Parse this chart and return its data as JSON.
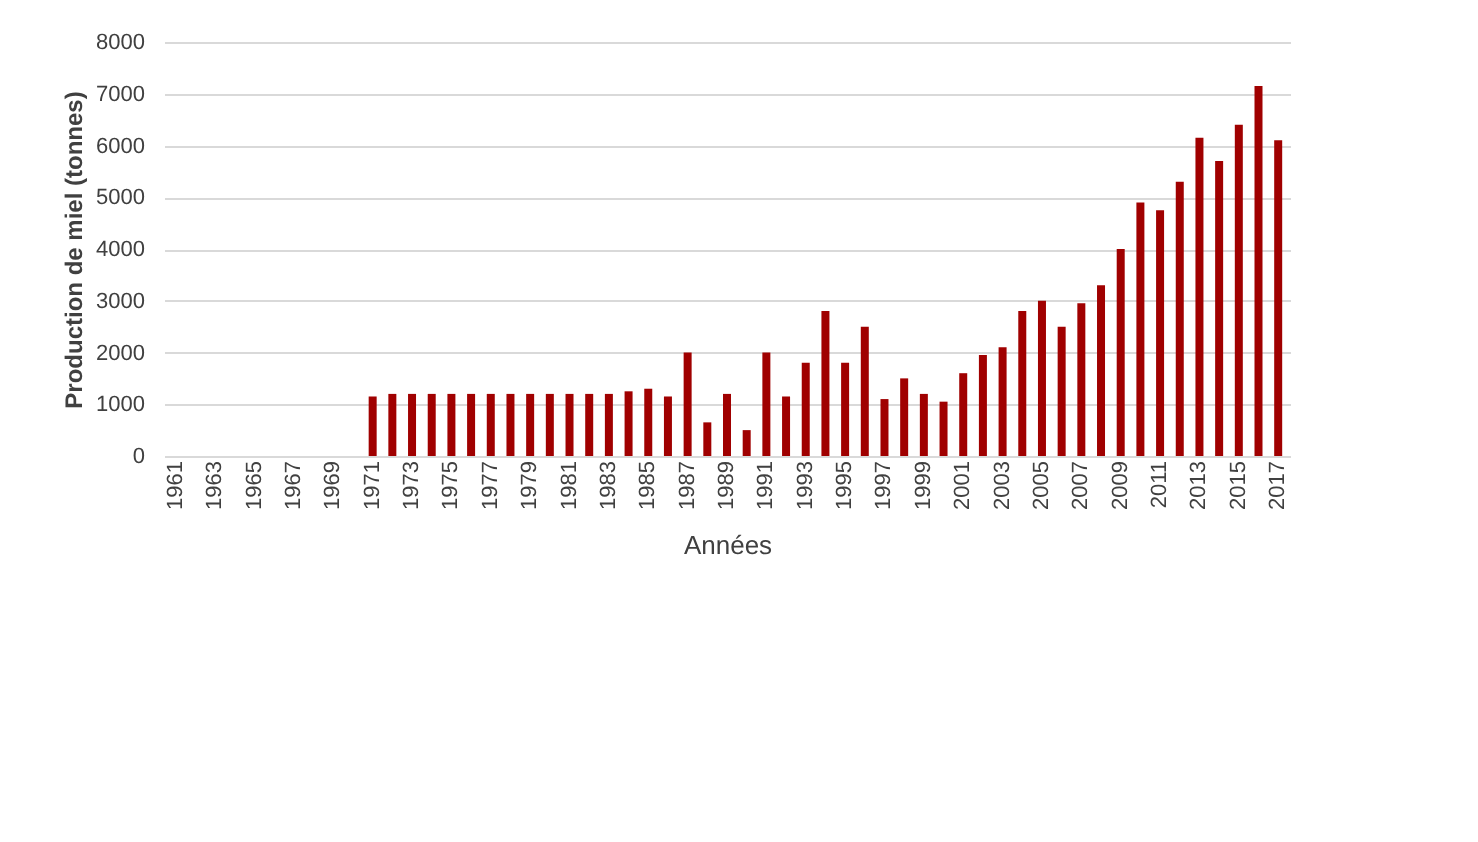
{
  "chart_data": {
    "type": "bar",
    "xlabel": "Années",
    "ylabel": "Production de miel (tonnes)",
    "categories": [
      "1961",
      null,
      "1963",
      null,
      "1965",
      null,
      "1967",
      null,
      "1969",
      null,
      "1971",
      null,
      "1973",
      null,
      "1975",
      null,
      "1977",
      null,
      "1979",
      null,
      "1981",
      null,
      "1983",
      null,
      "1985",
      null,
      "1987",
      null,
      "1989",
      null,
      "1991",
      null,
      "1993",
      null,
      "1995",
      null,
      "1997",
      null,
      "1999",
      null,
      "2001",
      null,
      "2003",
      null,
      "2005",
      null,
      "2007",
      null,
      "2009",
      null,
      "2011",
      null,
      "2013",
      null,
      "2015",
      null,
      "2017"
    ],
    "values": [
      0,
      0,
      0,
      0,
      0,
      0,
      0,
      0,
      0,
      0,
      1150,
      1200,
      1200,
      1200,
      1200,
      1200,
      1200,
      1200,
      1200,
      1200,
      1200,
      1200,
      1200,
      1250,
      1300,
      1150,
      2000,
      650,
      1200,
      500,
      2000,
      1150,
      1800,
      2800,
      1800,
      2500,
      1100,
      1500,
      1200,
      1050,
      1600,
      1950,
      2100,
      2800,
      3000,
      2500,
      2950,
      3300,
      4000,
      4900,
      4750,
      5300,
      6150,
      5700,
      6400,
      7150,
      6100
    ],
    "color": "#a00000",
    "ylim": [
      0,
      8000
    ],
    "yticks": [
      0,
      1000,
      2000,
      3000,
      4000,
      5000,
      6000,
      7000,
      8000
    ],
    "grid": "y"
  }
}
